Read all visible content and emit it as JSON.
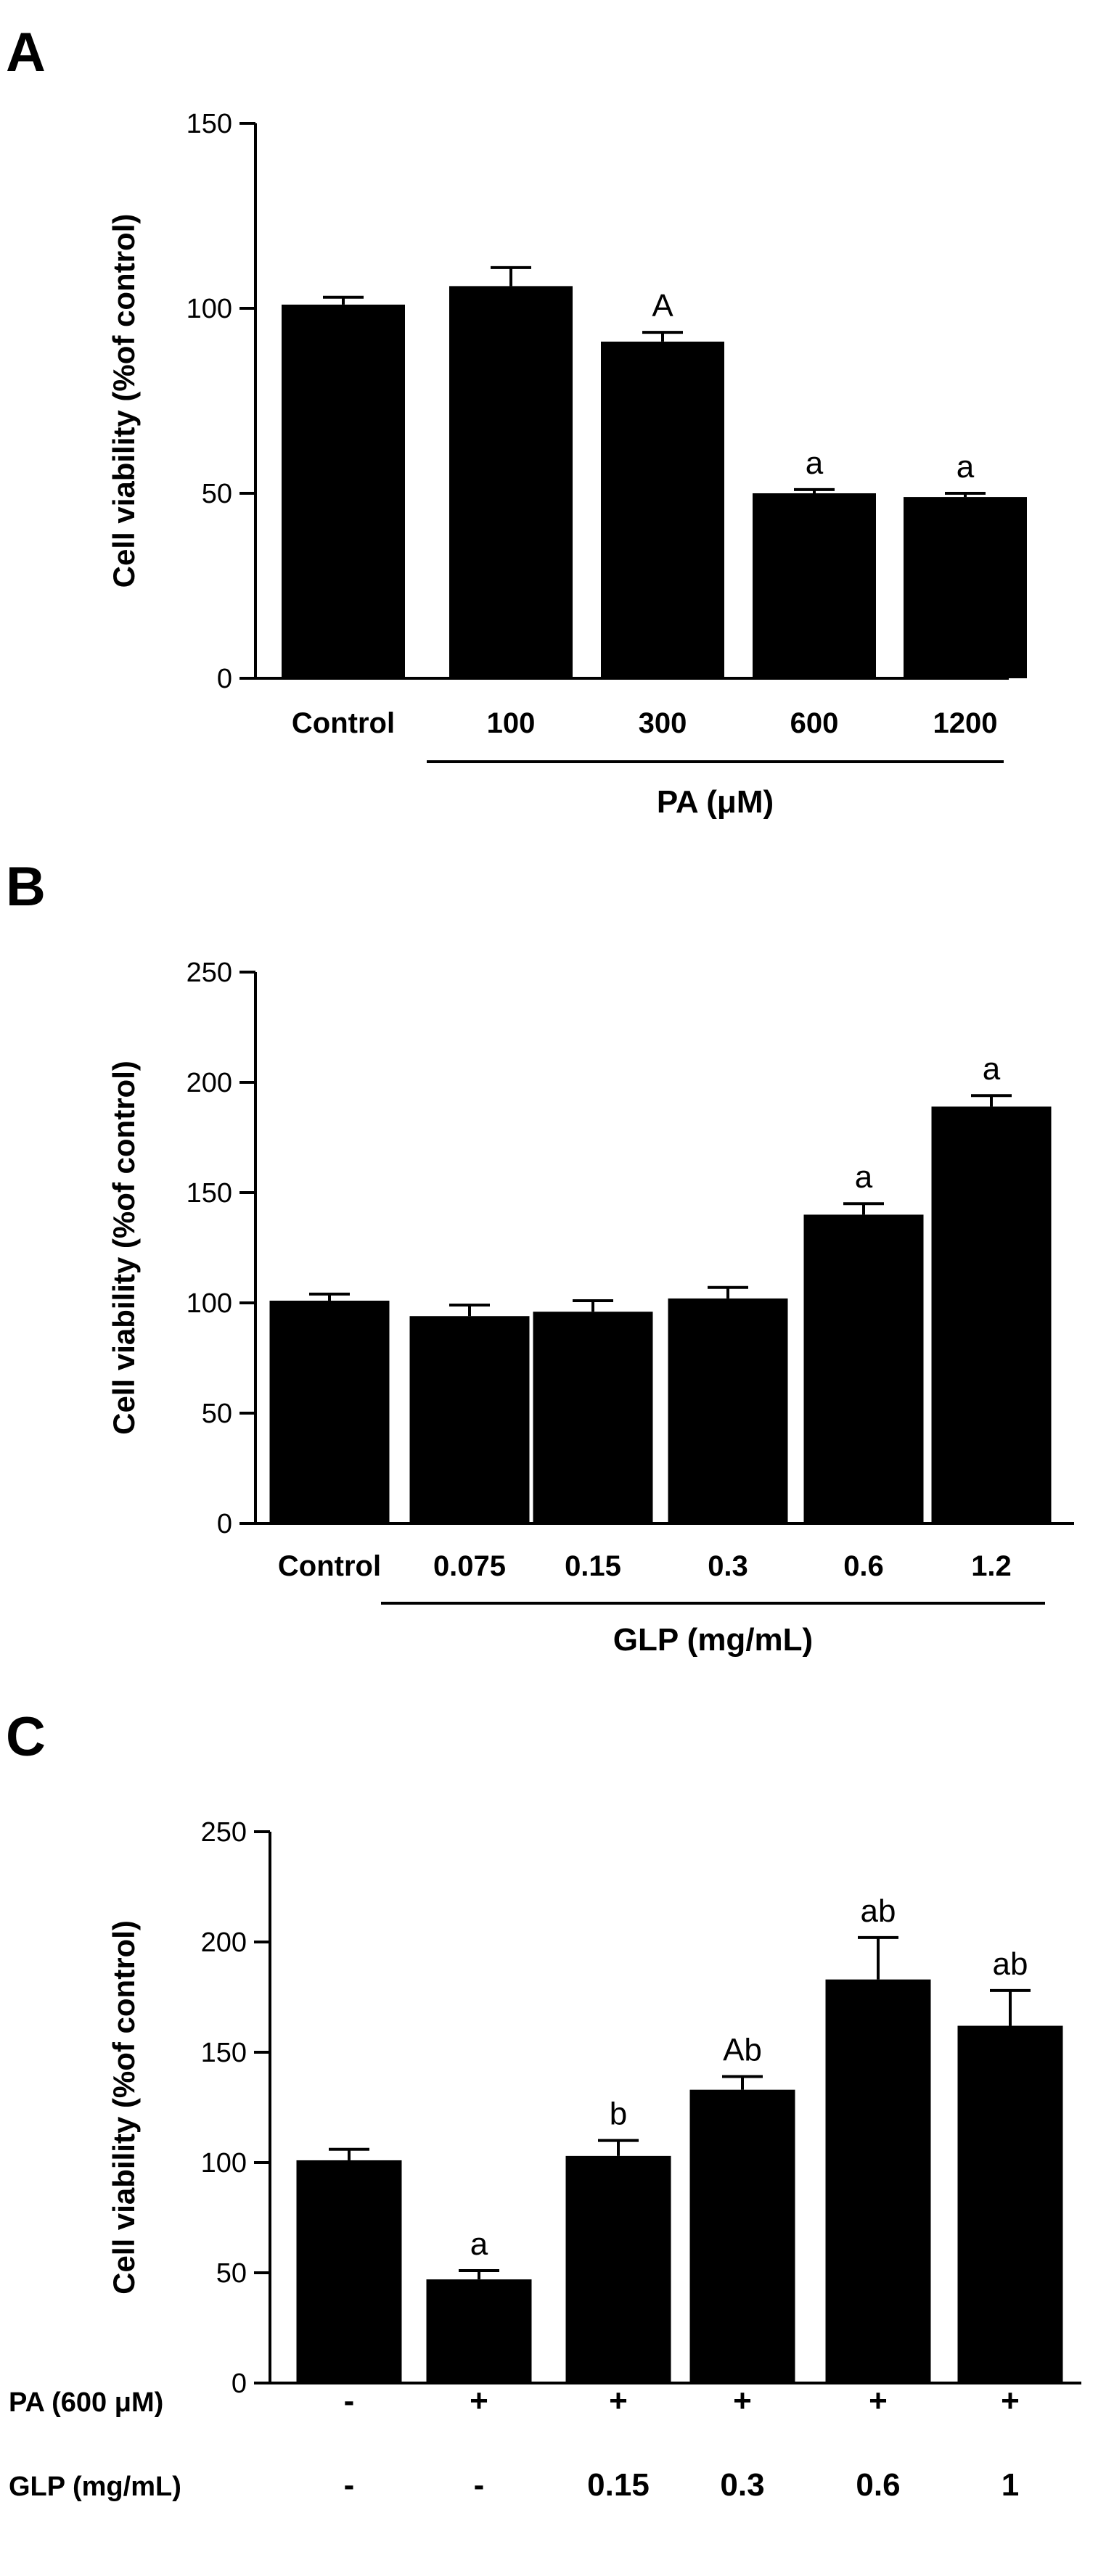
{
  "chart_data": [
    {
      "type": "bar",
      "panel_label": "A",
      "ylabel": "Cell viability (%of control)",
      "ylim": [
        0,
        150
      ],
      "yticks": [
        0,
        50,
        100,
        150
      ],
      "categories": [
        "Control",
        "100",
        "300",
        "600",
        "1200"
      ],
      "values": [
        101,
        106,
        91,
        50,
        49
      ],
      "errors": [
        2,
        5,
        2.5,
        1,
        1
      ],
      "significance": [
        "",
        "",
        "A",
        "a",
        "a"
      ],
      "group_label": "PA (μM)",
      "group_range": [
        1,
        4
      ],
      "grid": false
    },
    {
      "type": "bar",
      "panel_label": "B",
      "ylabel": "Cell viability (%of control)",
      "ylim": [
        0,
        250
      ],
      "yticks": [
        0,
        50,
        100,
        150,
        200,
        250
      ],
      "categories": [
        "Control",
        "0.075",
        "0.15",
        "0.3",
        "0.6",
        "1.2"
      ],
      "values": [
        101,
        94,
        96,
        102,
        140,
        189
      ],
      "errors": [
        3,
        5,
        5,
        5,
        5,
        5
      ],
      "significance": [
        "",
        "",
        "",
        "",
        "a",
        "a"
      ],
      "group_label": "GLP (mg/mL)",
      "group_range": [
        1,
        5
      ],
      "grid": false
    },
    {
      "type": "bar",
      "panel_label": "C",
      "ylabel": "Cell viability (%of control)",
      "ylim": [
        0,
        250
      ],
      "yticks": [
        0,
        50,
        100,
        150,
        200,
        250
      ],
      "values": [
        101,
        47,
        103,
        133,
        183,
        162
      ],
      "errors": [
        5,
        4,
        7,
        6,
        19,
        16
      ],
      "significance": [
        "",
        "a",
        "b",
        "Ab",
        "ab",
        "ab"
      ],
      "treatment_rows": [
        {
          "label": "PA (600 μM)",
          "cells": [
            "-",
            "+",
            "+",
            "+",
            "+",
            "+"
          ]
        },
        {
          "label": "GLP (mg/mL)",
          "cells": [
            "-",
            "-",
            "0.15",
            "0.3",
            "0.6",
            "1"
          ]
        }
      ],
      "grid": false
    }
  ]
}
